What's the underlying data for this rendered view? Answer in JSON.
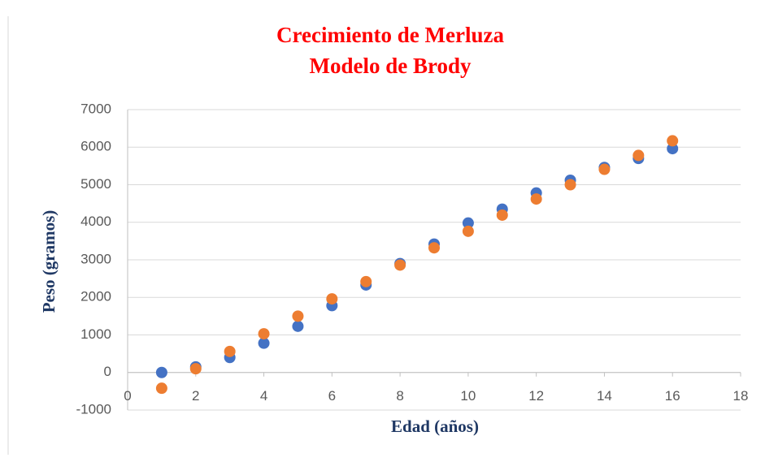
{
  "chart_data": {
    "type": "scatter",
    "title": "Crecimiento de Merluza",
    "subtitle": "Modelo de Brody",
    "x_label": "Edad (años)",
    "y_label": "Peso (gramos)",
    "x": [
      1,
      2,
      3,
      4,
      5,
      6,
      7,
      8,
      9,
      10,
      11,
      12,
      13,
      14,
      15,
      16
    ],
    "series": [
      {
        "color": "#4472c4",
        "values": [
          0,
          150,
          400,
          780,
          1230,
          1780,
          2330,
          2900,
          3420,
          3980,
          4350,
          4780,
          5120,
          5460,
          5700,
          5960
        ]
      },
      {
        "color": "#ed7d31",
        "values": [
          -420,
          100,
          560,
          1030,
          1500,
          1960,
          2420,
          2860,
          3320,
          3760,
          4190,
          4620,
          5000,
          5410,
          5780,
          6170
        ]
      }
    ],
    "xlim": [
      0,
      18
    ],
    "xticks": [
      0,
      2,
      4,
      6,
      8,
      10,
      12,
      14,
      16,
      18
    ],
    "ylim": [
      -1000,
      7000
    ],
    "yticks": [
      -1000,
      0,
      1000,
      2000,
      3000,
      4000,
      5000,
      6000,
      7000
    ],
    "grid": true
  }
}
